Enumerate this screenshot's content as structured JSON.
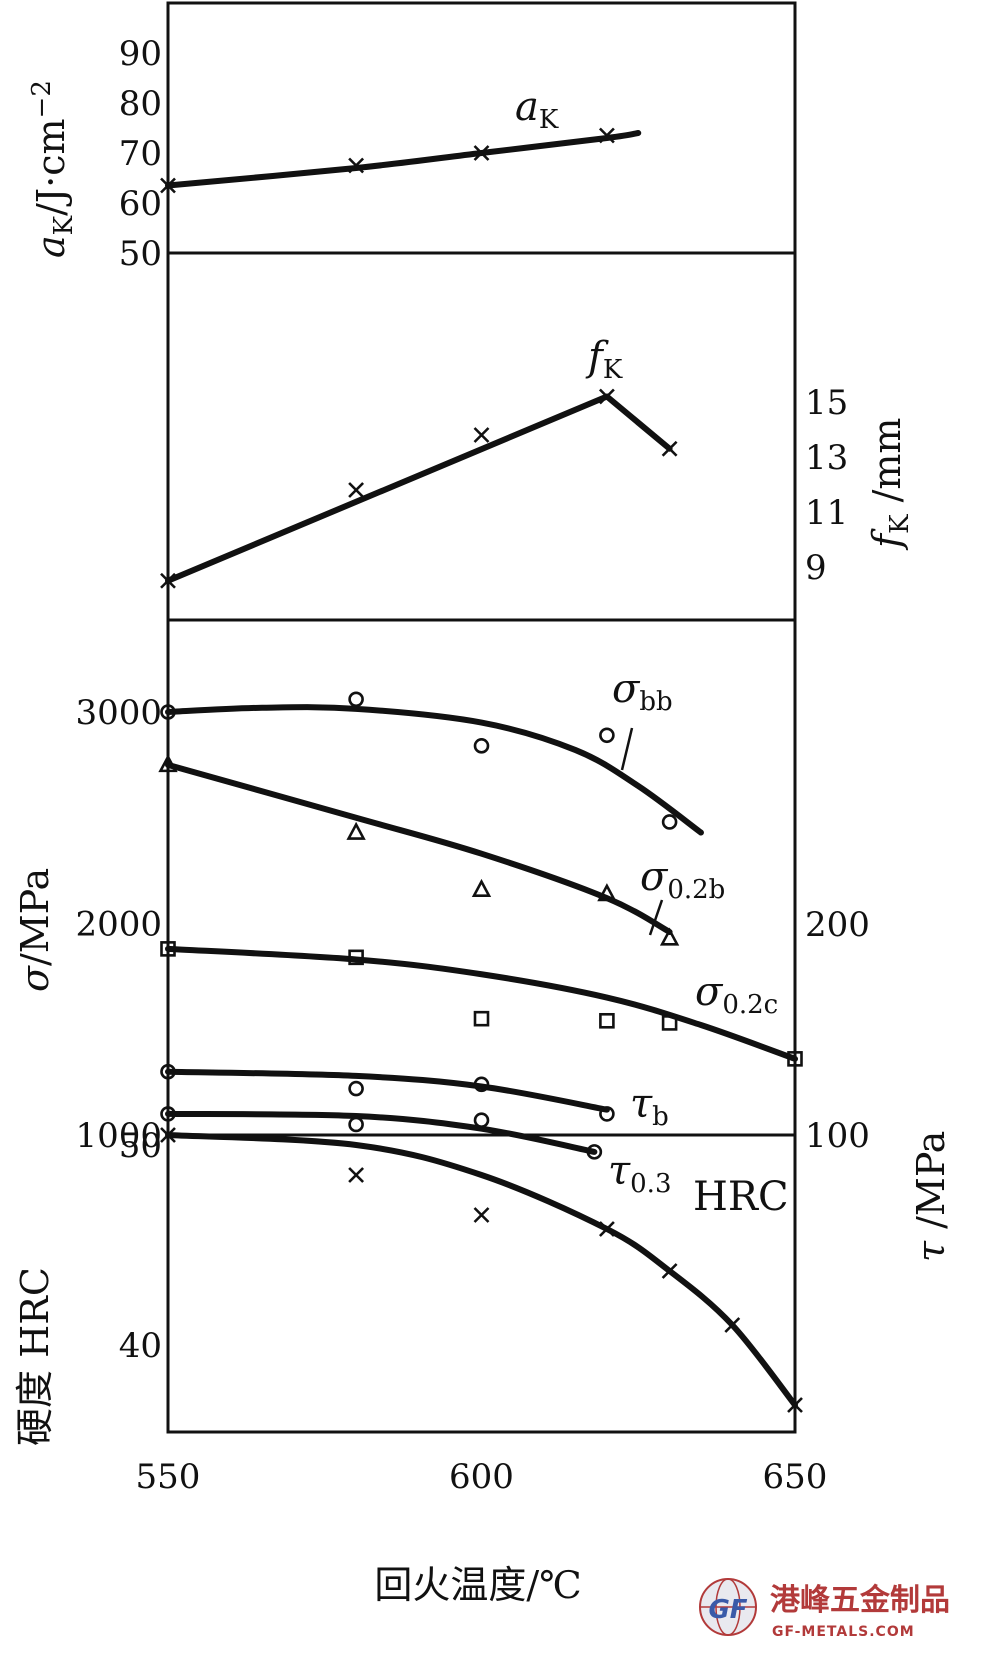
{
  "chart_data": {
    "type": "line",
    "xlabel": "回火温度/℃",
    "xlim": [
      550,
      650
    ],
    "x_ticks": [
      "550",
      "600",
      "650"
    ],
    "panels": [
      {
        "id": "aK",
        "ylabel": "aK/J·cm−2",
        "ylabel_main": "a",
        "ylabel_sub": "K",
        "ylabel_unit": "/J·cm",
        "ylabel_sup": "−2",
        "ylim": [
          50,
          100
        ],
        "y_ticks": [
          "50",
          "60",
          "70",
          "80",
          "90"
        ],
        "series": [
          {
            "name": "aK",
            "name_main": "a",
            "name_sub": "K",
            "marker": "x",
            "points": [
              [
                550,
                63.5
              ],
              [
                580,
                67.5
              ],
              [
                600,
                70
              ],
              [
                620,
                73.5
              ]
            ],
            "curve": [
              [
                550,
                63.5
              ],
              [
                580,
                67
              ],
              [
                600,
                70
              ],
              [
                620,
                73
              ],
              [
                625,
                74
              ]
            ]
          }
        ]
      },
      {
        "id": "fK",
        "ylabel": "fK/mm",
        "ylabel_main": "f",
        "ylabel_sub": "K",
        "ylabel_unit": "/mm",
        "ylim": [
          7,
          19
        ],
        "y_ticks": [
          "9",
          "11",
          "13",
          "15"
        ],
        "series": [
          {
            "name": "fK",
            "name_main": "f",
            "name_sub": "K",
            "marker": "x",
            "points": [
              [
                550,
                8.5
              ],
              [
                580,
                11.8
              ],
              [
                600,
                13.8
              ],
              [
                620,
                15.2
              ],
              [
                630,
                13.3
              ]
            ],
            "curve": [
              [
                550,
                8.5
              ],
              [
                620,
                15.2
              ],
              [
                630,
                13.3
              ]
            ]
          }
        ]
      },
      {
        "id": "sigma",
        "ylabel": "σ/MPa",
        "ylabel_main": "σ",
        "ylabel_unit": "/MPa",
        "ylim": [
          1000,
          3500
        ],
        "y_ticks": [
          "1000",
          "2000",
          "3000"
        ],
        "right_ylabel": "τ/MPa",
        "right_ylabel_main": "τ",
        "right_ylabel_unit": "/MPa",
        "right_ylim": [
          100,
          350
        ],
        "right_y_ticks": [
          "100",
          "200"
        ],
        "series": [
          {
            "name": "σbb",
            "name_main": "σ",
            "name_sub": "bb",
            "marker": "o",
            "axis": "left",
            "points": [
              [
                550,
                3000
              ],
              [
                580,
                3060
              ],
              [
                600,
                2840
              ],
              [
                620,
                2890
              ],
              [
                630,
                2480
              ]
            ],
            "curve": [
              [
                550,
                3000
              ],
              [
                565,
                3020
              ],
              [
                580,
                3015
              ],
              [
                600,
                2950
              ],
              [
                615,
                2820
              ],
              [
                625,
                2650
              ],
              [
                635,
                2430
              ]
            ]
          },
          {
            "name": "σ0.2b",
            "name_main": "σ",
            "name_sub": "0.2b",
            "marker": "triangle",
            "axis": "left",
            "points": [
              [
                550,
                2750
              ],
              [
                580,
                2430
              ],
              [
                600,
                2160
              ],
              [
                620,
                2140
              ],
              [
                630,
                1930
              ]
            ],
            "curve": [
              [
                550,
                2750
              ],
              [
                580,
                2500
              ],
              [
                600,
                2330
              ],
              [
                620,
                2120
              ],
              [
                630,
                1960
              ]
            ]
          },
          {
            "name": "σ0.2c",
            "name_main": "σ",
            "name_sub": "0.2c",
            "marker": "square",
            "axis": "left",
            "points": [
              [
                550,
                1880
              ],
              [
                580,
                1840
              ],
              [
                600,
                1550
              ],
              [
                620,
                1540
              ],
              [
                630,
                1530
              ],
              [
                650,
                1360
              ]
            ],
            "curve": [
              [
                550,
                1880
              ],
              [
                580,
                1830
              ],
              [
                600,
                1760
              ],
              [
                620,
                1650
              ],
              [
                635,
                1520
              ],
              [
                650,
                1360
              ]
            ]
          },
          {
            "name": "τb",
            "name_main": "τ",
            "name_sub": "b",
            "marker": "o",
            "axis": "right",
            "points": [
              [
                550,
                130
              ],
              [
                580,
                122
              ],
              [
                600,
                124
              ],
              [
                620,
                110
              ]
            ],
            "curve": [
              [
                550,
                130
              ],
              [
                580,
                128
              ],
              [
                600,
                123
              ],
              [
                620,
                112
              ]
            ]
          },
          {
            "name": "τ0.3",
            "name_main": "τ",
            "name_sub": "0.3",
            "marker": "o",
            "axis": "right",
            "points": [
              [
                550,
                110
              ],
              [
                580,
                105
              ],
              [
                600,
                107
              ],
              [
                618,
                92
              ]
            ],
            "curve": [
              [
                550,
                110
              ],
              [
                580,
                109
              ],
              [
                600,
                103
              ],
              [
                618,
                92
              ]
            ]
          }
        ]
      },
      {
        "id": "HRC",
        "ylabel": "硬度 HRC",
        "ylim": [
          30,
          55
        ],
        "y_ticks": [
          "40",
          "50"
        ],
        "series": [
          {
            "name": "HRC",
            "marker": "x",
            "points": [
              [
                550,
                50.5
              ],
              [
                580,
                48.5
              ],
              [
                600,
                46.5
              ],
              [
                620,
                45.8
              ],
              [
                630,
                43.7
              ],
              [
                640,
                41
              ],
              [
                650,
                37
              ]
            ],
            "curve": [
              [
                550,
                50.5
              ],
              [
                580,
                50
              ],
              [
                600,
                48.5
              ],
              [
                620,
                45.8
              ],
              [
                630,
                43.7
              ],
              [
                640,
                41
              ],
              [
                650,
                37
              ]
            ]
          }
        ]
      }
    ]
  },
  "watermark": {
    "text_cn": "港峰五金制品",
    "text_en": "GF-METALS.COM",
    "logo_text": "GF",
    "colors": {
      "primary": "#b23a3a",
      "logo_blue": "#3a5aa8"
    }
  }
}
